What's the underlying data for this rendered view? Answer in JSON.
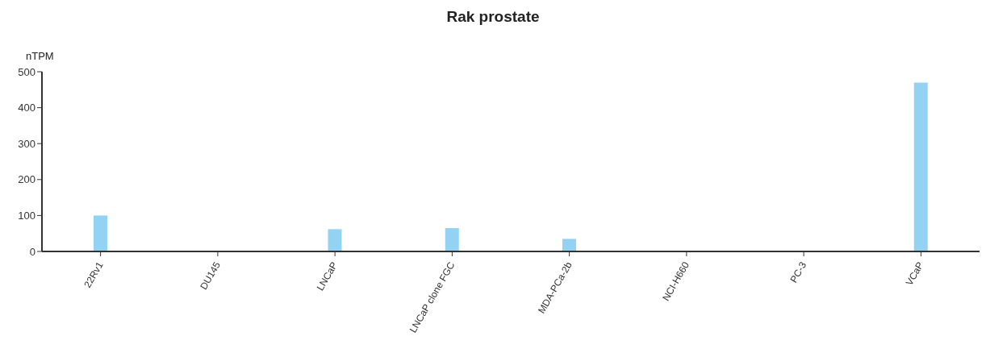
{
  "chart_data": {
    "type": "bar",
    "title": "Rak prostate",
    "ylabel": "nTPM",
    "categories": [
      "22Rv1",
      "DU145",
      "LNCaP",
      "LNCaP clone FGC",
      "MDA-PCa-2b",
      "NCI-H660",
      "PC-3",
      "VCaP"
    ],
    "values": [
      100,
      0,
      62,
      65,
      35,
      0,
      0,
      470
    ],
    "color": "#93d2f3",
    "ylim": [
      0,
      500
    ],
    "yticks": [
      0,
      100,
      200,
      300,
      400,
      500
    ],
    "grid": false,
    "legend": false
  }
}
